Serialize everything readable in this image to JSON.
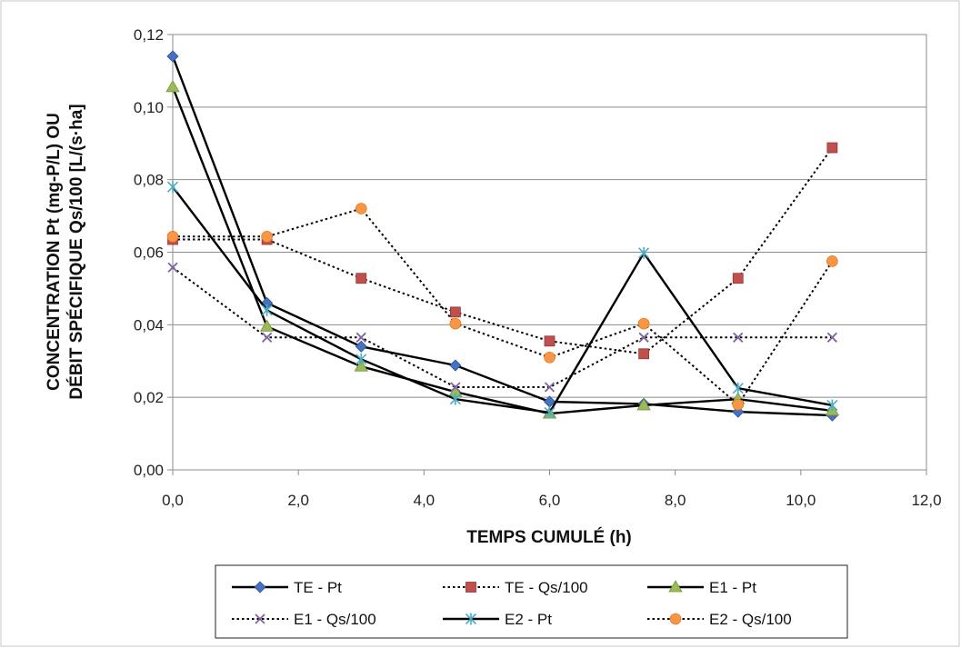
{
  "chart_data": {
    "type": "line",
    "title": "",
    "xlabel": "TEMPS CUMULÉ (h)",
    "ylabel_lines": [
      "CONCENTRATION Pt (mg-P/L) OU",
      "DÉBIT SPÉCIFIQUE Qs/100 [L/(s·ha]"
    ],
    "xlim": [
      0,
      12
    ],
    "ylim": [
      0,
      0.12
    ],
    "x_ticks": [
      0,
      2,
      4,
      6,
      8,
      10,
      12
    ],
    "x_tick_labels": [
      "0,0",
      "2,0",
      "4,0",
      "6,0",
      "8,0",
      "10,0",
      "12,0"
    ],
    "y_ticks": [
      0,
      0.02,
      0.04,
      0.06,
      0.08,
      0.1,
      0.12
    ],
    "y_tick_labels": [
      "0,00",
      "0,02",
      "0,04",
      "0,06",
      "0,08",
      "0,10",
      "0,12"
    ],
    "grid": "horizontal",
    "legend_position": "bottom",
    "x": [
      0,
      1.5,
      3,
      4.5,
      6,
      7.5,
      9,
      10.5
    ],
    "series": [
      {
        "name": "TE - Pt",
        "line": "solid",
        "marker": "diamond",
        "color": "#4472C4",
        "values": [
          0.114,
          0.046,
          0.034,
          0.0288,
          0.0188,
          0.0182,
          0.016,
          0.015
        ]
      },
      {
        "name": "TE - Qs/100",
        "line": "dotted",
        "marker": "square",
        "color": "#C0504D",
        "values": [
          0.0635,
          0.0635,
          0.0528,
          0.0435,
          0.0355,
          0.032,
          0.0528,
          0.0888
        ]
      },
      {
        "name": "E1 - Pt",
        "line": "solid",
        "marker": "triangle",
        "color": "#9BBB59",
        "values": [
          0.1055,
          0.0395,
          0.0285,
          0.0215,
          0.0155,
          0.0178,
          0.0195,
          0.0163
        ]
      },
      {
        "name": "E1 - Qs/100",
        "line": "dotted",
        "marker": "x",
        "color": "#8064A2",
        "values": [
          0.0558,
          0.0365,
          0.0365,
          0.0228,
          0.0228,
          0.0365,
          0.0365,
          0.0365
        ]
      },
      {
        "name": "E2 - Pt",
        "line": "solid",
        "marker": "star",
        "color": "#4BACC6",
        "values": [
          0.078,
          0.044,
          0.0305,
          0.0195,
          0.0158,
          0.0598,
          0.0225,
          0.0178
        ]
      },
      {
        "name": "E2 - Qs/100",
        "line": "dotted",
        "marker": "circle",
        "color": "#F79646",
        "values": [
          0.0643,
          0.0643,
          0.072,
          0.0403,
          0.031,
          0.0403,
          0.018,
          0.0575
        ]
      }
    ]
  }
}
